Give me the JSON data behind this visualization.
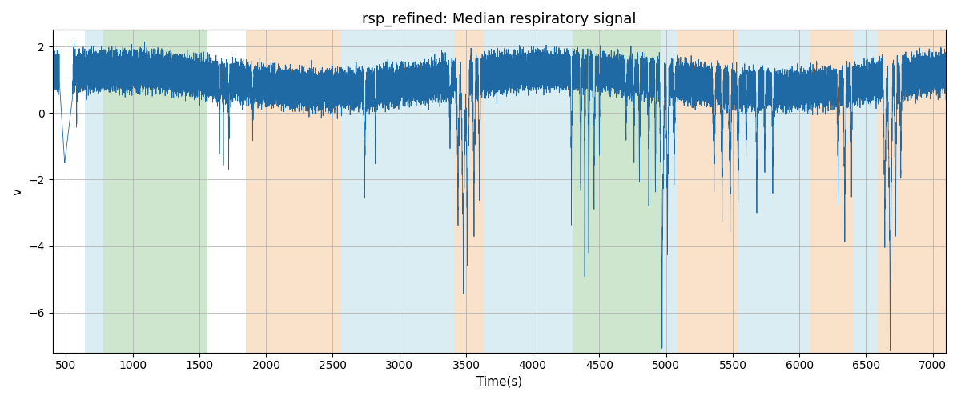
{
  "title": "rsp_refined: Median respiratory signal",
  "xlabel": "Time(s)",
  "ylabel": "v",
  "xlim": [
    400,
    7100
  ],
  "ylim": [
    -7.2,
    2.5
  ],
  "xticks": [
    500,
    1000,
    1500,
    2000,
    2500,
    3000,
    3500,
    4000,
    4500,
    5000,
    5500,
    6000,
    6500,
    7000
  ],
  "yticks": [
    2,
    0,
    -2,
    -4,
    -6
  ],
  "line_color": "#1f6aa5",
  "line_width": 0.6,
  "background_color": "#ffffff",
  "grid_color": "#b0b0b0",
  "bands": [
    {
      "xmin": 640,
      "xmax": 780,
      "color": "#add8e6",
      "alpha": 0.45
    },
    {
      "xmin": 780,
      "xmax": 1560,
      "color": "#90c990",
      "alpha": 0.45
    },
    {
      "xmin": 1850,
      "xmax": 2560,
      "color": "#f5c08a",
      "alpha": 0.45
    },
    {
      "xmin": 2560,
      "xmax": 3410,
      "color": "#add8e6",
      "alpha": 0.45
    },
    {
      "xmin": 3410,
      "xmax": 3630,
      "color": "#f5c08a",
      "alpha": 0.45
    },
    {
      "xmin": 3630,
      "xmax": 4300,
      "color": "#add8e6",
      "alpha": 0.45
    },
    {
      "xmin": 4300,
      "xmax": 4960,
      "color": "#90c990",
      "alpha": 0.45
    },
    {
      "xmin": 4960,
      "xmax": 5080,
      "color": "#add8e6",
      "alpha": 0.45
    },
    {
      "xmin": 5080,
      "xmax": 5540,
      "color": "#f5c08a",
      "alpha": 0.45
    },
    {
      "xmin": 5540,
      "xmax": 6080,
      "color": "#add8e6",
      "alpha": 0.45
    },
    {
      "xmin": 6080,
      "xmax": 6400,
      "color": "#f5c08a",
      "alpha": 0.45
    },
    {
      "xmin": 6400,
      "xmax": 6590,
      "color": "#add8e6",
      "alpha": 0.45
    },
    {
      "xmin": 6590,
      "xmax": 7100,
      "color": "#f5c08a",
      "alpha": 0.45
    }
  ],
  "seed": 42,
  "fs": 4,
  "t_end": 7100
}
